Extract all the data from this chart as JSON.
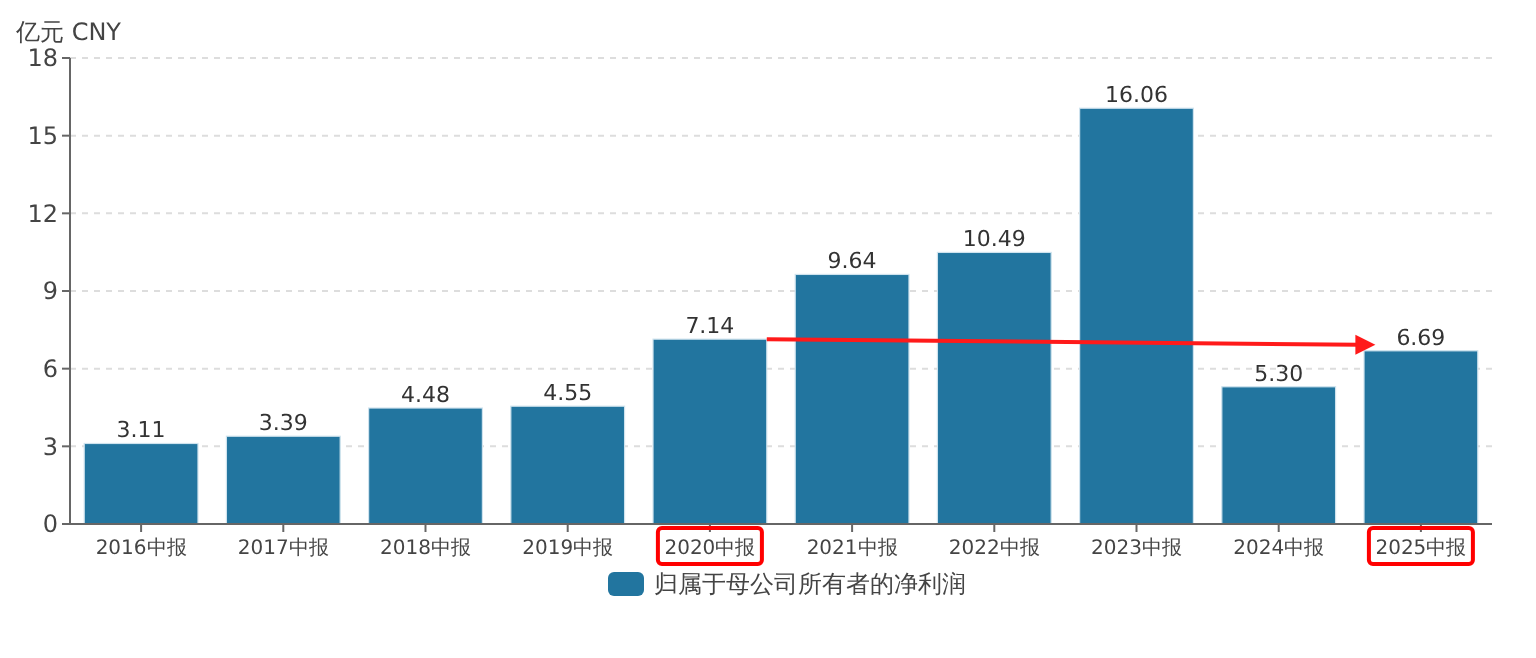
{
  "chart_data": {
    "type": "bar",
    "ylabel": "亿元  CNY",
    "categories": [
      "2016中报",
      "2017中报",
      "2018中报",
      "2019中报",
      "2020中报",
      "2021中报",
      "2022中报",
      "2023中报",
      "2024中报",
      "2025中报"
    ],
    "series": [
      {
        "name": "归属于母公司所有者的净利润",
        "color": "#22759f",
        "values": [
          3.11,
          3.39,
          4.48,
          4.55,
          7.14,
          9.64,
          10.49,
          16.06,
          5.3,
          6.69
        ],
        "value_labels": [
          "3.11",
          "3.39",
          "4.48",
          "4.55",
          "7.14",
          "9.64",
          "10.49",
          "16.06",
          "5.30",
          "6.69"
        ]
      }
    ],
    "ylim": [
      0,
      18
    ],
    "yticks": [
      0,
      3,
      6,
      9,
      12,
      15,
      18
    ],
    "grid": "y",
    "legend": "bottom"
  }
}
